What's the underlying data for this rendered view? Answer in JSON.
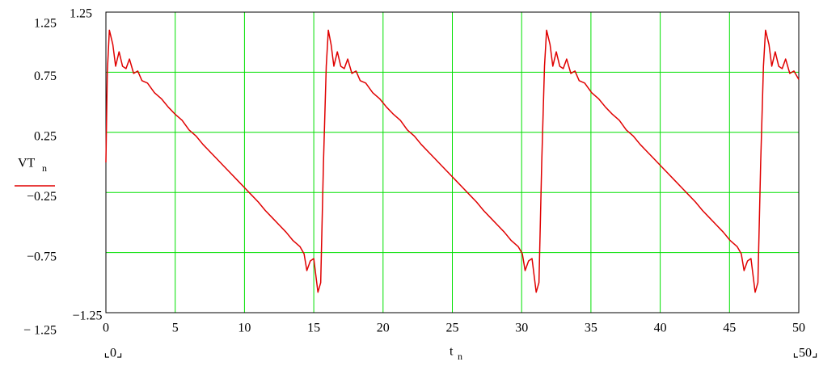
{
  "chart_data": {
    "type": "line",
    "ylabel": "VT",
    "ylabel_subscript": "n",
    "xlabel": "t",
    "xlabel_subscript": "n",
    "xlim": [
      0,
      50
    ],
    "xticks": [
      0,
      5,
      10,
      15,
      20,
      25,
      30,
      35,
      40,
      45,
      50
    ],
    "xlim_labels": [
      "⌞0⌟",
      "⌞50⌟"
    ],
    "ylim": [
      -1.25,
      1.25
    ],
    "ylim_labels": [
      "−1.25",
      "1.25"
    ],
    "yticks": [
      {
        "value": -1.25,
        "label": "− 1.25"
      },
      {
        "value": -0.75,
        "label": "−0.75"
      },
      {
        "value": -0.25,
        "label": "−0.25"
      },
      0.25,
      0.75,
      1.25
    ],
    "grid": true,
    "grid_color": "#00e000",
    "x": [
      0,
      0.1,
      0.25,
      0.5,
      0.7,
      0.95,
      1.2,
      1.45,
      1.7,
      2.0,
      2.3,
      2.6,
      3.0,
      3.5,
      4.0,
      4.5,
      5.0,
      5.5,
      6.0,
      6.5,
      7.0,
      7.5,
      8.0,
      8.5,
      9.0,
      9.5,
      10.0,
      10.5,
      11.0,
      11.5,
      12.0,
      12.5,
      13.0,
      13.5,
      14.0,
      14.3,
      14.5,
      14.75,
      15.0,
      15.3,
      15.5,
      15.7,
      15.9,
      16.05,
      16.25,
      16.45,
      16.7,
      16.95,
      17.2,
      17.45,
      17.75,
      18.05,
      18.35,
      18.75,
      19.25,
      19.75,
      20.25,
      20.75,
      21.25,
      21.75,
      22.25,
      22.75,
      23.25,
      23.75,
      24.25,
      24.75,
      25.25,
      25.75,
      26.25,
      26.75,
      27.25,
      27.75,
      28.25,
      28.75,
      29.25,
      29.75,
      30.05,
      30.25,
      30.5,
      30.75,
      31.05,
      31.25,
      31.45,
      31.65,
      31.8,
      32.05,
      32.25,
      32.5,
      32.75,
      33.0,
      33.25,
      33.55,
      33.85,
      34.15,
      34.55,
      35.05,
      35.55,
      36.05,
      36.55,
      37.05,
      37.55,
      38.05,
      38.55,
      39.05,
      39.55,
      40.05,
      40.55,
      41.05,
      41.55,
      42.05,
      42.55,
      43.05,
      43.55,
      44.05,
      44.55,
      45.05,
      45.55,
      45.85,
      46.05,
      46.3,
      46.55,
      46.85,
      47.05,
      47.25,
      47.45,
      47.6,
      47.85,
      48.05,
      48.3,
      48.55,
      48.8,
      49.05,
      49.35,
      49.65,
      50
    ],
    "series": [
      {
        "color": "#e00000",
        "values": [
          0,
          0.75,
          1.1,
          0.98,
          0.8,
          0.92,
          0.8,
          0.78,
          0.86,
          0.74,
          0.76,
          0.68,
          0.66,
          0.58,
          0.53,
          0.46,
          0.4,
          0.35,
          0.27,
          0.22,
          0.15,
          0.09,
          0.03,
          -0.03,
          -0.09,
          -0.15,
          -0.21,
          -0.27,
          -0.33,
          -0.4,
          -0.46,
          -0.52,
          -0.58,
          -0.65,
          -0.7,
          -0.76,
          -0.9,
          -0.82,
          -0.8,
          -1.08,
          -1.0,
          0,
          0.8,
          1.1,
          0.98,
          0.8,
          0.92,
          0.8,
          0.78,
          0.86,
          0.74,
          0.76,
          0.68,
          0.66,
          0.58,
          0.53,
          0.46,
          0.4,
          0.35,
          0.27,
          0.22,
          0.15,
          0.09,
          0.03,
          -0.03,
          -0.09,
          -0.15,
          -0.21,
          -0.27,
          -0.33,
          -0.4,
          -0.46,
          -0.52,
          -0.58,
          -0.65,
          -0.7,
          -0.76,
          -0.9,
          -0.82,
          -0.8,
          -1.08,
          -1.0,
          0,
          0.8,
          1.1,
          0.98,
          0.8,
          0.92,
          0.8,
          0.78,
          0.86,
          0.74,
          0.76,
          0.68,
          0.66,
          0.58,
          0.53,
          0.46,
          0.4,
          0.35,
          0.27,
          0.22,
          0.15,
          0.09,
          0.03,
          -0.03,
          -0.09,
          -0.15,
          -0.21,
          -0.27,
          -0.33,
          -0.4,
          -0.46,
          -0.52,
          -0.58,
          -0.65,
          -0.7,
          -0.76,
          -0.9,
          -0.82,
          -0.8,
          -1.08,
          -1.0,
          0,
          0.8,
          1.1,
          0.98,
          0.8,
          0.92,
          0.8,
          0.78,
          0.86,
          0.74,
          0.76,
          0.69
        ]
      }
    ]
  }
}
